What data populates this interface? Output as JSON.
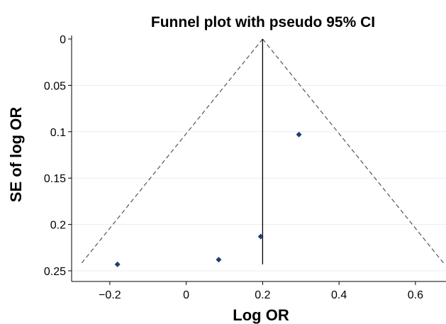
{
  "chart_data": {
    "type": "scatter",
    "title": "Funnel plot with pseudo 95% CI",
    "xlabel": "Log OR",
    "ylabel": "SE of log OR",
    "xlim": [
      -0.3,
      0.68
    ],
    "ylim": [
      0,
      0.255
    ],
    "y_reversed": true,
    "grid": true,
    "x_ticks": [
      -0.2,
      0,
      0.2,
      0.4,
      0.6
    ],
    "x_tick_labels": [
      "−0.2",
      "0",
      "0.2",
      "0.4",
      "0.6"
    ],
    "y_ticks": [
      0,
      0.05,
      0.1,
      0.15,
      0.2,
      0.25
    ],
    "y_tick_labels": [
      "0",
      "0.05",
      "0.1",
      "0.15",
      "0.2",
      "0.25"
    ],
    "pooled_estimate": 0.2,
    "funnel_max_se": 0.243,
    "points": [
      {
        "x": -0.18,
        "y": 0.243
      },
      {
        "x": 0.085,
        "y": 0.238
      },
      {
        "x": 0.195,
        "y": 0.213
      },
      {
        "x": 0.295,
        "y": 0.103
      }
    ],
    "colors": {
      "point": "#1f3f6e",
      "funnel": "#555555",
      "center_line": "#000000",
      "grid": "#e6eef2"
    }
  }
}
